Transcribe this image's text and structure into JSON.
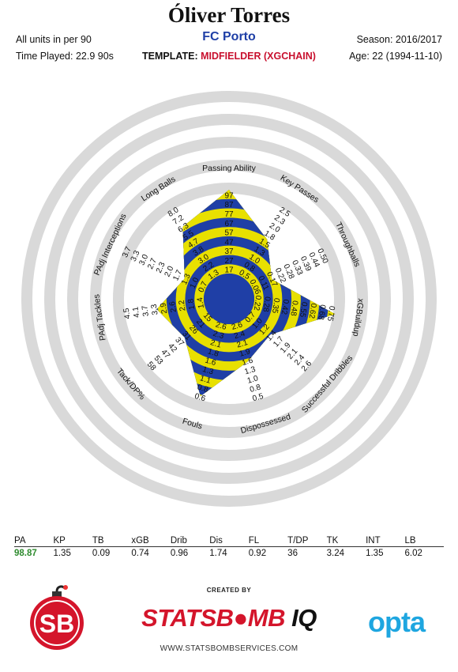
{
  "header": {
    "player": "Óliver Torres",
    "club": "FC Porto",
    "units": "All units in per 90",
    "time_played": "Time Played: 22.9 90s",
    "season": "Season: 2016/2017",
    "age": "Age: 22 (1994-11-10)",
    "template_label": "TEMPLATE:",
    "template_value": "MIDFIELDER (XGCHAIN)"
  },
  "colors": {
    "band_a": "#1f3fa6",
    "band_b": "#e8e000",
    "ring": "#d9d9d9",
    "club": "#1f3fa6",
    "template": "#c8102e",
    "pa_value": "#2e8b2e"
  },
  "chart_data": {
    "type": "radar",
    "rings": 5,
    "axes": [
      {
        "name": "Passing Ability",
        "ticks": [
          "17",
          "27",
          "37",
          "47",
          "57",
          "67",
          "77",
          "87",
          "97"
        ],
        "value": 98.87,
        "value_fraction": 1.0
      },
      {
        "name": "Key Passes",
        "ticks": [
          "0.5",
          "0.8",
          "1.0",
          "1.3",
          "1.5",
          "1.8",
          "2.0",
          "2.3",
          "2.5"
        ],
        "value": 1.35,
        "value_fraction": 0.54
      },
      {
        "name": "Throughballs",
        "ticks": [
          "0.06",
          "0.11",
          "0.17",
          "0.22",
          "0.28",
          "0.33",
          "0.39",
          "0.44",
          "0.50"
        ],
        "value": 0.09,
        "value_fraction": 0.26
      },
      {
        "name": "xGBuildup",
        "ticks": [
          "0.22",
          "0.28",
          "0.35",
          "0.42",
          "0.48",
          "0.55",
          "0.62",
          "0.68",
          "0.75"
        ],
        "value": 0.74,
        "value_fraction": 0.98
      },
      {
        "name": "Successful Dribbles",
        "ticks": [
          "0.7",
          "1.0",
          "1.2",
          "1.4",
          "1.7",
          "1.9",
          "2.1",
          "2.4",
          "2.6"
        ],
        "value": 0.96,
        "value_fraction": 0.35
      },
      {
        "name": "Dispossessed",
        "ticks": [
          "2.6",
          "2.4",
          "2.1",
          "1.9",
          "1.6",
          "1.3",
          "1.0",
          "0.8",
          "0.5"
        ],
        "value": 1.74,
        "value_fraction": 0.48
      },
      {
        "name": "Fouls",
        "ticks": [
          "2.6",
          "2.3",
          "2.1",
          "1.8",
          "1.6",
          "1.3",
          "1.1",
          "0.8",
          "0.6"
        ],
        "value": 0.92,
        "value_fraction": 0.91
      },
      {
        "name": "Tack/DP%",
        "ticks": [
          "15",
          "21",
          "26",
          "31",
          "37",
          "42",
          "47",
          "53",
          "58"
        ],
        "value": 36,
        "value_fraction": 0.4
      },
      {
        "name": "PAdj Tackles",
        "ticks": [
          "1.4",
          "1.8",
          "2.2",
          "2.6",
          "2.9",
          "3.3",
          "3.7",
          "4.1",
          "4.5"
        ],
        "value": 3.24,
        "value_fraction": 0.57
      },
      {
        "name": "PAdj Interceptions",
        "ticks": [
          "0.7",
          "1.0",
          "1.3",
          "1.7",
          "2.0",
          "2.3",
          "2.7",
          "3.0",
          "3.3",
          "3.7"
        ],
        "value": 1.35,
        "value_fraction": 0.28
      },
      {
        "name": "Long Balls",
        "ticks": [
          "1.3",
          "2.2",
          "3.0",
          "3.8",
          "4.7",
          "5.5",
          "6.3",
          "7.2",
          "8.0"
        ],
        "value": 6.02,
        "value_fraction": 0.72
      }
    ]
  },
  "stats_table": {
    "headers": [
      "PA",
      "KP",
      "TB",
      "xGB",
      "Drib",
      "Dis",
      "FL",
      "T/DP",
      "TK",
      "INT",
      "LB"
    ],
    "values": [
      "98.87",
      "1.35",
      "0.09",
      "0.74",
      "0.96",
      "1.74",
      "0.92",
      "36",
      "3.24",
      "1.35",
      "6.02"
    ]
  },
  "footer": {
    "created_by": "CREATED BY",
    "brand_a": "STATSB",
    "brand_b": "MB",
    "brand_c": "IQ",
    "website": "WWW.STATSBOMBSERVICES.COM",
    "opta": "opta",
    "sb": "SB"
  }
}
